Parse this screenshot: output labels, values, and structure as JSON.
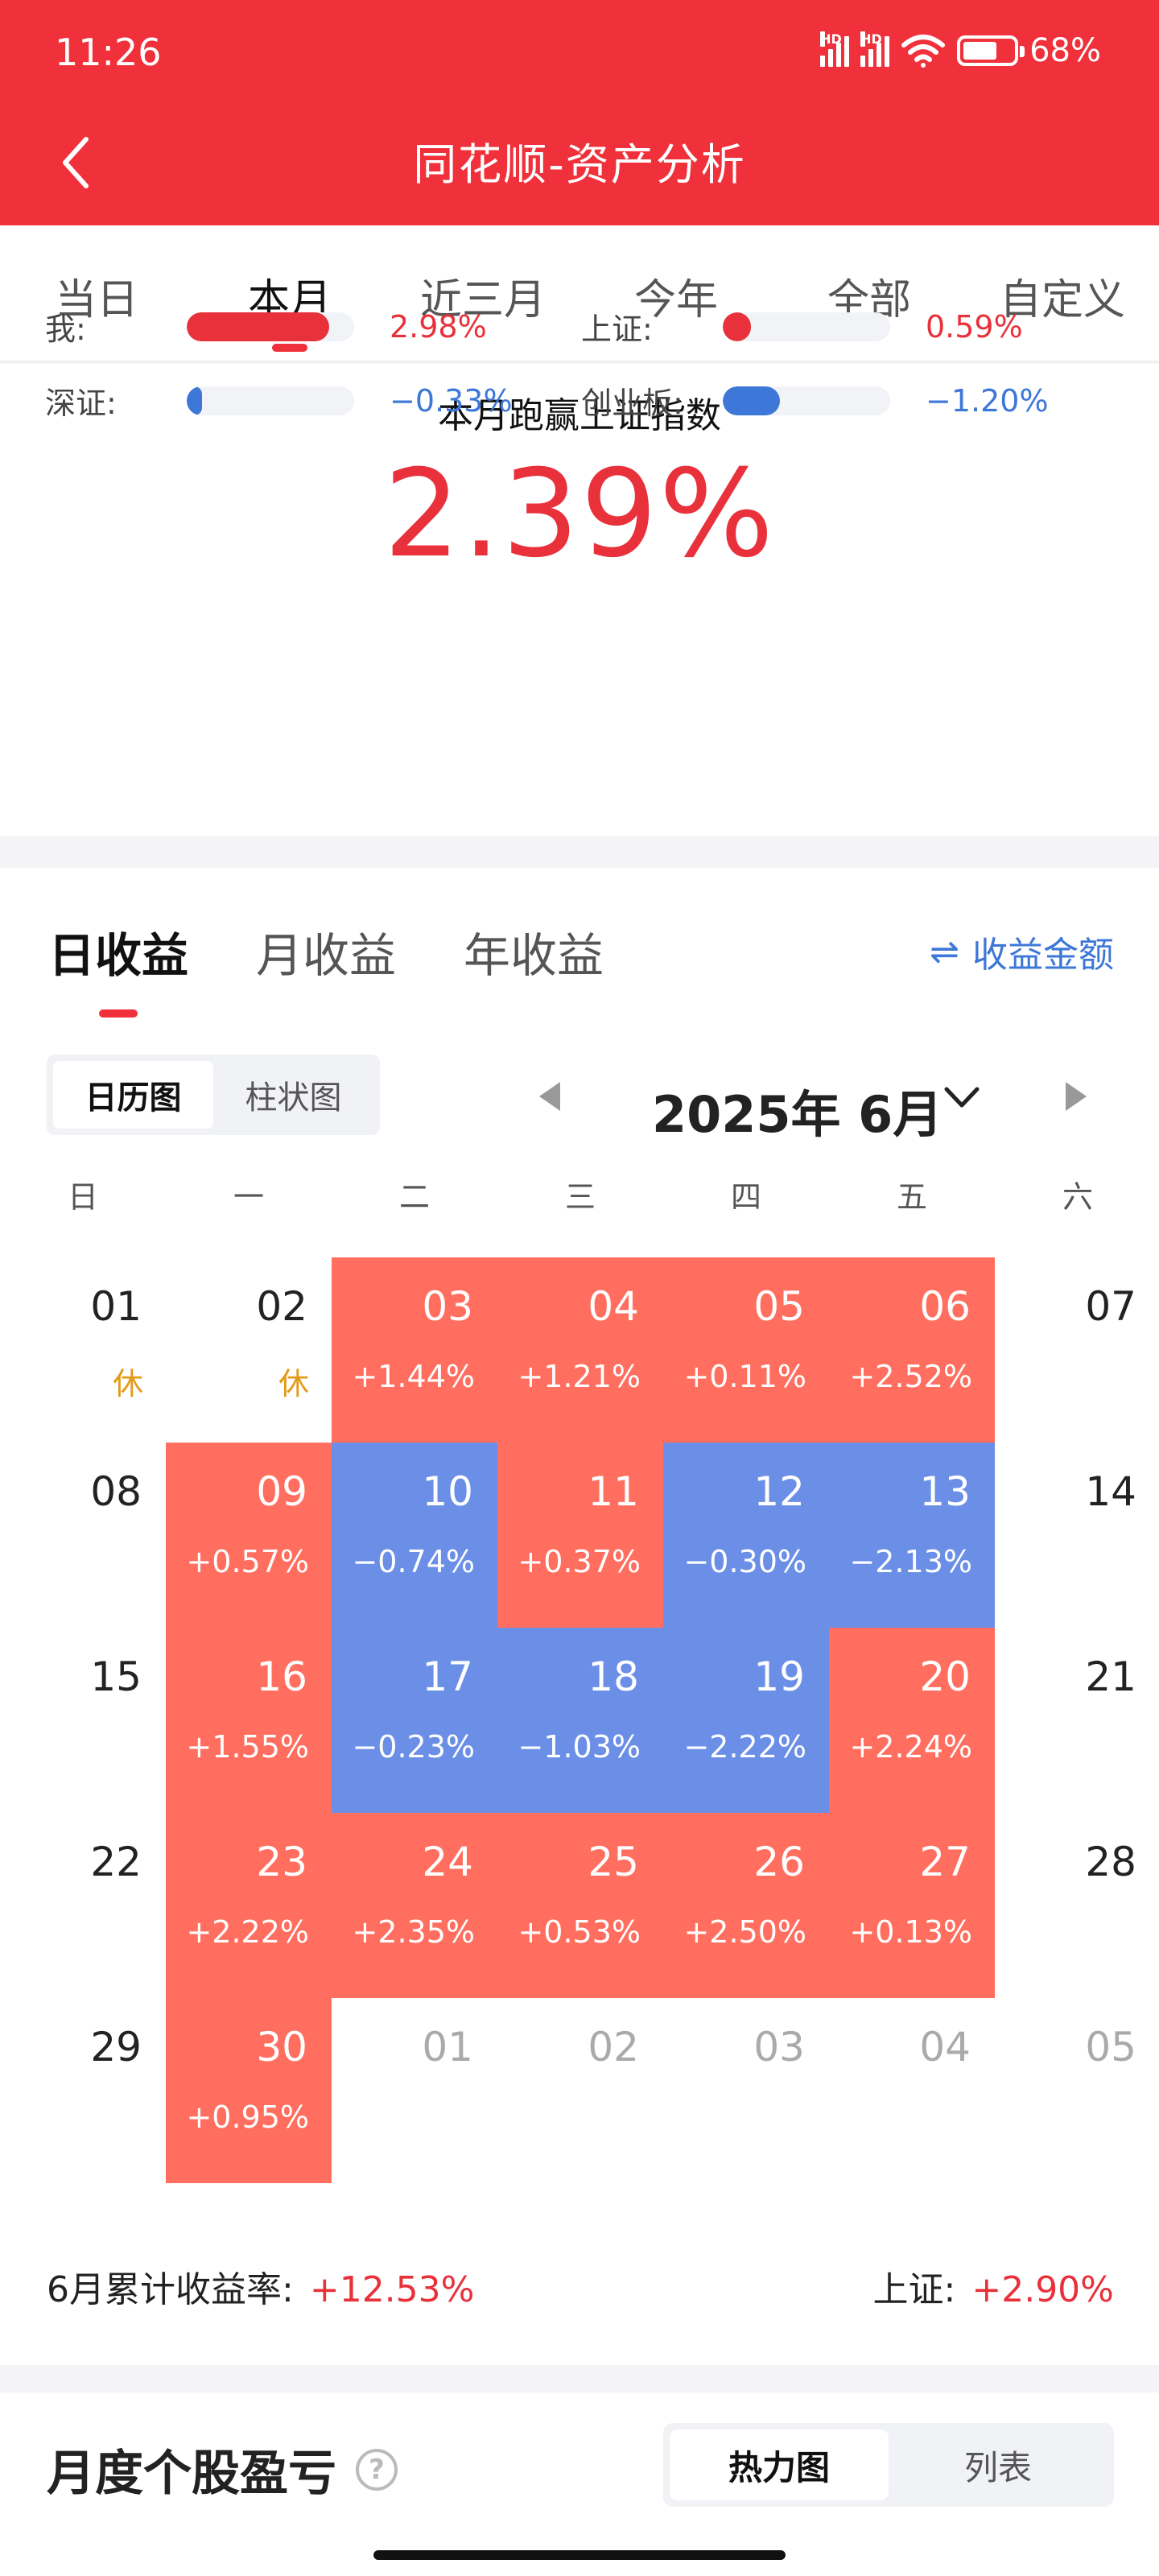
{
  "status": {
    "time": "11:26",
    "battery": "68%",
    "battery_level": 0.68,
    "hd": "HD"
  },
  "nav": {
    "title": "同花顺-资产分析"
  },
  "period_tabs": [
    "当日",
    "本月",
    "近三月",
    "今年",
    "全部",
    "自定义"
  ],
  "period_active": 1,
  "compare": {
    "title": "本月跑赢上证指数",
    "value": "2.39%",
    "metrics": [
      {
        "label": "我:",
        "value": "2.98%",
        "bar": 0.85,
        "color": "#e8313b",
        "sign": "pos"
      },
      {
        "label": "上证:",
        "value": "0.59%",
        "bar": 0.17,
        "color": "#e8313b",
        "sign": "pos"
      },
      {
        "label": "深证:",
        "value": "−0.33%",
        "bar": 0.09,
        "color": "#3d78d8",
        "sign": "neg"
      },
      {
        "label": "创业板:",
        "value": "−1.20%",
        "bar": 0.34,
        "color": "#3d78d8",
        "sign": "neg"
      }
    ]
  },
  "returns": {
    "tabs": [
      "日收益",
      "月收益",
      "年收益"
    ],
    "amount_toggle": "收益金额",
    "amount_icon": "⇌",
    "view_options": [
      "日历图",
      "柱状图"
    ],
    "month_label": "2025年 6月",
    "weekdays": [
      "日",
      "一",
      "二",
      "三",
      "四",
      "五",
      "六"
    ],
    "days": [
      {
        "d": "01",
        "s": "休",
        "t": "rest"
      },
      {
        "d": "02",
        "s": "休",
        "t": "rest"
      },
      {
        "d": "03",
        "s": "+1.44%",
        "t": "up"
      },
      {
        "d": "04",
        "s": "+1.21%",
        "t": "up"
      },
      {
        "d": "05",
        "s": "+0.11%",
        "t": "up"
      },
      {
        "d": "06",
        "s": "+2.52%",
        "t": "up"
      },
      {
        "d": "07",
        "s": "",
        "t": "plain"
      },
      {
        "d": "08",
        "s": "",
        "t": "plain"
      },
      {
        "d": "09",
        "s": "+0.57%",
        "t": "up"
      },
      {
        "d": "10",
        "s": "−0.74%",
        "t": "down"
      },
      {
        "d": "11",
        "s": "+0.37%",
        "t": "up"
      },
      {
        "d": "12",
        "s": "−0.30%",
        "t": "down"
      },
      {
        "d": "13",
        "s": "−2.13%",
        "t": "down"
      },
      {
        "d": "14",
        "s": "",
        "t": "plain"
      },
      {
        "d": "15",
        "s": "",
        "t": "plain"
      },
      {
        "d": "16",
        "s": "+1.55%",
        "t": "up"
      },
      {
        "d": "17",
        "s": "−0.23%",
        "t": "down"
      },
      {
        "d": "18",
        "s": "−1.03%",
        "t": "down"
      },
      {
        "d": "19",
        "s": "−2.22%",
        "t": "down"
      },
      {
        "d": "20",
        "s": "+2.24%",
        "t": "up"
      },
      {
        "d": "21",
        "s": "",
        "t": "plain"
      },
      {
        "d": "22",
        "s": "",
        "t": "plain"
      },
      {
        "d": "23",
        "s": "+2.22%",
        "t": "up"
      },
      {
        "d": "24",
        "s": "+2.35%",
        "t": "up"
      },
      {
        "d": "25",
        "s": "+0.53%",
        "t": "up"
      },
      {
        "d": "26",
        "s": "+2.50%",
        "t": "up"
      },
      {
        "d": "27",
        "s": "+0.13%",
        "t": "up"
      },
      {
        "d": "28",
        "s": "",
        "t": "plain"
      },
      {
        "d": "29",
        "s": "",
        "t": "plain"
      },
      {
        "d": "30",
        "s": "+0.95%",
        "t": "up"
      },
      {
        "d": "01",
        "s": "",
        "t": "other"
      },
      {
        "d": "02",
        "s": "",
        "t": "other"
      },
      {
        "d": "03",
        "s": "",
        "t": "other"
      },
      {
        "d": "04",
        "s": "",
        "t": "other"
      },
      {
        "d": "05",
        "s": "",
        "t": "other"
      }
    ],
    "summary": {
      "left_label": "6月累计收益率:",
      "left_value": "+12.53%",
      "right_label": "上证:",
      "right_value": "+2.90%"
    }
  },
  "pnl": {
    "title": "月度个股盈亏",
    "help": "?",
    "options": [
      "热力图",
      "列表"
    ]
  }
}
